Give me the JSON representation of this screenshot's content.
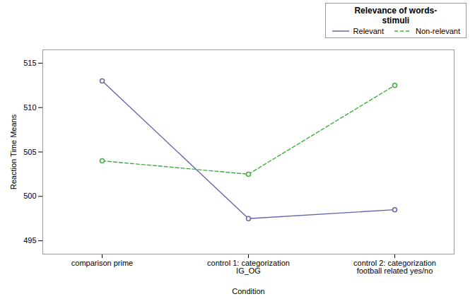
{
  "chart_data": {
    "type": "line",
    "xlabel": "Condition",
    "ylabel": "Reaction Time Means",
    "categories": [
      "comparison prime",
      "control 1: categorization\nIG_OG",
      "control 2: categorization\nfootball related yes/no"
    ],
    "series": [
      {
        "name": "Relevant",
        "color": "#6666aa",
        "line_style": "solid",
        "marker": "circle",
        "values": [
          513.0,
          497.5,
          498.5
        ]
      },
      {
        "name": "Non-relevant",
        "color": "#44aa44",
        "line_style": "dashed",
        "marker": "circle",
        "values": [
          504.0,
          502.5,
          512.5
        ]
      }
    ],
    "ylim": [
      493.5,
      516.5
    ],
    "yticks": [
      495,
      500,
      505,
      510,
      515
    ],
    "grid": false,
    "legend": "upper right",
    "legend_title": "Relevance of words-\nstimuli"
  }
}
